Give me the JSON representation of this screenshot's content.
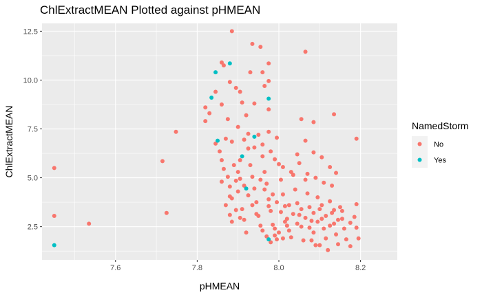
{
  "chart_data": {
    "type": "scatter",
    "title": "ChlExtractMEAN Plotted against pHMEAN",
    "xlabel": "pHMEAN",
    "ylabel": "ChlExtractMEAN",
    "xlim": [
      7.42,
      8.29
    ],
    "ylim": [
      0.8,
      12.9
    ],
    "x_ticks": [
      7.6,
      7.8,
      8.0,
      8.2
    ],
    "x_tick_labels": [
      "7.6",
      "7.8",
      "8.0",
      "8.2"
    ],
    "y_ticks": [
      2.5,
      5.0,
      7.5,
      10.0,
      12.5
    ],
    "y_tick_labels": [
      "2.5",
      "5.0",
      "7.5",
      "10.0",
      "12.5"
    ],
    "grid": true,
    "legend": {
      "title": "NamedStorm",
      "position": "right"
    },
    "series": [
      {
        "name": "No",
        "color": "#F8766D",
        "points": [
          [
            7.45,
            5.5
          ],
          [
            7.45,
            3.05
          ],
          [
            7.535,
            2.65
          ],
          [
            7.715,
            5.85
          ],
          [
            7.725,
            3.2
          ],
          [
            7.748,
            7.35
          ],
          [
            7.82,
            8.6
          ],
          [
            7.82,
            7.9
          ],
          [
            7.83,
            8.3
          ],
          [
            7.845,
            9.4
          ],
          [
            7.86,
            10.9
          ],
          [
            7.865,
            10.75
          ],
          [
            7.885,
            12.5
          ],
          [
            7.86,
            8.75
          ],
          [
            7.875,
            8.0
          ],
          [
            7.88,
            9.9
          ],
          [
            7.895,
            9.6
          ],
          [
            7.905,
            9.4
          ],
          [
            7.91,
            8.85
          ],
          [
            7.92,
            8.2
          ],
          [
            7.935,
            11.85
          ],
          [
            7.94,
            8.8
          ],
          [
            7.955,
            11.7
          ],
          [
            7.96,
            10.4
          ],
          [
            7.965,
            9.7
          ],
          [
            7.975,
            9.95
          ],
          [
            7.975,
            10.85
          ],
          [
            7.93,
            10.4
          ],
          [
            7.975,
            8.5
          ],
          [
            7.995,
            7.05
          ],
          [
            8.065,
            11.45
          ],
          [
            8.085,
            7.85
          ],
          [
            8.055,
            8.0
          ],
          [
            8.135,
            8.25
          ],
          [
            8.19,
            7.0
          ],
          [
            8.065,
            6.9
          ],
          [
            8.105,
            6.05
          ],
          [
            8.125,
            5.55
          ],
          [
            7.845,
            6.75
          ],
          [
            7.855,
            6.35
          ],
          [
            7.87,
            7.0
          ],
          [
            7.885,
            6.85
          ],
          [
            7.86,
            5.9
          ],
          [
            7.865,
            5.45
          ],
          [
            7.875,
            5.05
          ],
          [
            7.88,
            4.55
          ],
          [
            7.885,
            3.95
          ],
          [
            7.87,
            3.6
          ],
          [
            7.88,
            3.1
          ],
          [
            7.885,
            2.75
          ],
          [
            7.895,
            4.85
          ],
          [
            7.905,
            5.9
          ],
          [
            7.9,
            4.3
          ],
          [
            7.91,
            3.4
          ],
          [
            7.915,
            2.85
          ],
          [
            7.92,
            2.2
          ],
          [
            7.925,
            6.5
          ],
          [
            7.93,
            5.65
          ],
          [
            7.935,
            5.05
          ],
          [
            7.94,
            4.45
          ],
          [
            7.945,
            3.75
          ],
          [
            7.95,
            3.05
          ],
          [
            7.955,
            2.55
          ],
          [
            7.96,
            6.1
          ],
          [
            7.965,
            5.3
          ],
          [
            7.97,
            4.7
          ],
          [
            7.975,
            3.9
          ],
          [
            7.98,
            3.3
          ],
          [
            7.985,
            2.6
          ],
          [
            7.99,
            2.05
          ],
          [
            7.995,
            1.85
          ],
          [
            8.0,
            5.7
          ],
          [
            8.005,
            4.9
          ],
          [
            8.01,
            4.15
          ],
          [
            8.015,
            3.55
          ],
          [
            8.02,
            2.9
          ],
          [
            8.025,
            2.3
          ],
          [
            8.03,
            1.95
          ],
          [
            8.035,
            5.15
          ],
          [
            8.04,
            4.4
          ],
          [
            8.045,
            3.7
          ],
          [
            8.05,
            3.1
          ],
          [
            8.055,
            2.5
          ],
          [
            8.06,
            1.8
          ],
          [
            8.065,
            4.9
          ],
          [
            8.07,
            4.2
          ],
          [
            8.075,
            3.5
          ],
          [
            8.08,
            2.8
          ],
          [
            8.085,
            2.2
          ],
          [
            8.09,
            1.55
          ],
          [
            8.095,
            4.0
          ],
          [
            8.1,
            3.4
          ],
          [
            8.105,
            2.9
          ],
          [
            8.11,
            2.4
          ],
          [
            8.115,
            1.9
          ],
          [
            8.12,
            1.3
          ],
          [
            8.125,
            3.8
          ],
          [
            8.13,
            3.2
          ],
          [
            8.135,
            2.65
          ],
          [
            8.14,
            2.1
          ],
          [
            8.145,
            1.6
          ],
          [
            8.15,
            3.5
          ],
          [
            8.155,
            2.9
          ],
          [
            8.16,
            2.4
          ],
          [
            8.165,
            1.85
          ],
          [
            8.175,
            2.7
          ],
          [
            8.185,
            3.0
          ],
          [
            8.19,
            3.65
          ],
          [
            8.19,
            2.45
          ],
          [
            8.175,
            1.5
          ],
          [
            7.905,
            4.95
          ],
          [
            7.915,
            4.6
          ],
          [
            7.925,
            4.1
          ],
          [
            7.935,
            3.6
          ],
          [
            7.945,
            3.15
          ],
          [
            7.955,
            4.9
          ],
          [
            7.965,
            4.4
          ],
          [
            7.975,
            3.55
          ],
          [
            7.985,
            4.15
          ],
          [
            7.995,
            3.75
          ],
          [
            8.005,
            3.25
          ],
          [
            8.015,
            2.75
          ],
          [
            8.025,
            3.6
          ],
          [
            8.035,
            3.15
          ],
          [
            8.045,
            2.65
          ],
          [
            8.055,
            3.4
          ],
          [
            8.065,
            2.95
          ],
          [
            8.075,
            2.45
          ],
          [
            8.085,
            3.2
          ],
          [
            8.095,
            2.75
          ],
          [
            8.105,
            3.6
          ],
          [
            8.115,
            3.05
          ],
          [
            8.125,
            2.55
          ],
          [
            8.135,
            3.35
          ],
          [
            8.145,
            2.85
          ],
          [
            8.155,
            3.3
          ],
          [
            7.96,
            2.3
          ],
          [
            7.97,
            2.0
          ],
          [
            7.98,
            1.7
          ],
          [
            7.99,
            2.4
          ],
          [
            8.0,
            2.2
          ],
          [
            8.01,
            1.9
          ],
          [
            8.02,
            2.55
          ],
          [
            7.915,
            6.95
          ],
          [
            7.925,
            7.25
          ],
          [
            7.94,
            6.55
          ],
          [
            7.95,
            7.2
          ],
          [
            7.96,
            6.7
          ],
          [
            7.98,
            6.35
          ],
          [
            7.99,
            5.95
          ],
          [
            8.01,
            5.55
          ],
          [
            8.03,
            5.3
          ],
          [
            8.05,
            5.75
          ],
          [
            8.07,
            5.2
          ],
          [
            8.09,
            5.0
          ],
          [
            8.11,
            4.75
          ],
          [
            8.13,
            4.6
          ],
          [
            8.14,
            5.25
          ],
          [
            8.085,
            6.3
          ],
          [
            8.045,
            6.2
          ],
          [
            7.975,
            7.35
          ],
          [
            7.9,
            7.6
          ],
          [
            7.89,
            5.65
          ],
          [
            7.9,
            5.3
          ],
          [
            7.895,
            3.35
          ],
          [
            7.905,
            2.95
          ],
          [
            7.88,
            4.05
          ],
          [
            7.86,
            4.8
          ],
          [
            8.195,
            1.9
          ],
          [
            8.1,
            1.55
          ],
          [
            8.08,
            1.8
          ]
        ]
      },
      {
        "name": "Yes",
        "color": "#00BFC4",
        "points": [
          [
            7.45,
            1.55
          ],
          [
            7.835,
            9.1
          ],
          [
            7.845,
            10.4
          ],
          [
            7.88,
            10.85
          ],
          [
            7.975,
            9.05
          ],
          [
            7.85,
            6.9
          ],
          [
            7.94,
            7.1
          ],
          [
            7.91,
            6.1
          ],
          [
            7.92,
            4.45
          ],
          [
            7.975,
            1.85
          ]
        ]
      }
    ]
  }
}
